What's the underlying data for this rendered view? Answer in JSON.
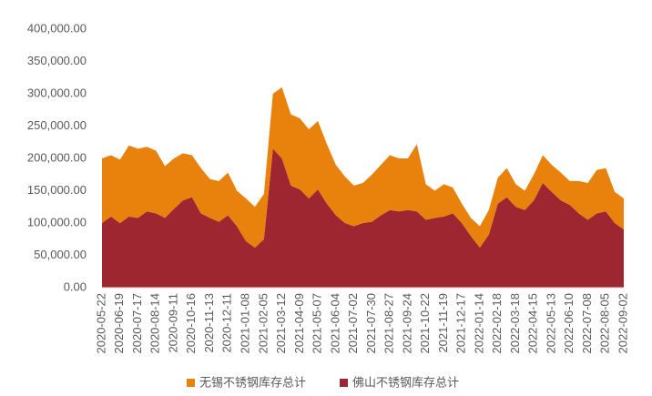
{
  "chart_data": {
    "type": "stacked-area",
    "categories": [
      "2020-05-22",
      null,
      "2020-06-19",
      null,
      "2020-07-17",
      null,
      "2020-08-14",
      null,
      "2020-09-11",
      null,
      "2020-10-16",
      null,
      "2020-11-13",
      null,
      "2020-12-11",
      null,
      "2021-01-08",
      null,
      "2021-02-05",
      null,
      "2021-03-12",
      null,
      "2021-04-09",
      null,
      "2021-05-07",
      null,
      "2021-06-04",
      null,
      "2021-07-02",
      null,
      "2021-07-30",
      null,
      "2021-08-27",
      null,
      "2021-09-24",
      null,
      "2021-10-22",
      null,
      "2021-11-19",
      null,
      "2021-12-17",
      null,
      "2022-01-14",
      null,
      "2022-02-18",
      null,
      "2022-03-18",
      null,
      "2022-04-15",
      null,
      "2022-05-13",
      null,
      "2022-06-10",
      null,
      "2022-07-08",
      null,
      "2022-08-05",
      null,
      "2022-09-02"
    ],
    "series": [
      {
        "name": "无锡不锈钢库存总计",
        "color": "#e8820c",
        "values": [
          100000,
          95000,
          98000,
          110000,
          107000,
          100000,
          97000,
          80000,
          78000,
          73000,
          65000,
          70000,
          60000,
          63000,
          66000,
          55000,
          66000,
          63000,
          70000,
          85000,
          110000,
          110000,
          110000,
          107000,
          106000,
          92000,
          78000,
          72000,
          63000,
          62000,
          73000,
          78000,
          85000,
          82000,
          80000,
          104000,
          55000,
          42000,
          50000,
          40000,
          30000,
          28000,
          33000,
          38000,
          40000,
          45000,
          35000,
          30000,
          40000,
          43000,
          42000,
          43000,
          37000,
          50000,
          57000,
          67000,
          67000,
          48000,
          48000
        ]
      },
      {
        "name": "佛山不锈钢库存总计",
        "color": "#9e2631",
        "values": [
          100000,
          110000,
          100000,
          110000,
          108000,
          118000,
          115000,
          108000,
          122000,
          135000,
          140000,
          115000,
          108000,
          102000,
          112000,
          95000,
          72000,
          62000,
          75000,
          215000,
          200000,
          158000,
          152000,
          138000,
          152000,
          130000,
          112000,
          100000,
          95000,
          100000,
          102000,
          112000,
          120000,
          118000,
          120000,
          118000,
          105000,
          108000,
          110000,
          115000,
          100000,
          80000,
          62000,
          82000,
          130000,
          140000,
          125000,
          120000,
          135000,
          162000,
          148000,
          135000,
          128000,
          115000,
          105000,
          115000,
          118000,
          100000,
          90000
        ]
      }
    ],
    "ylim": [
      0,
      400000
    ],
    "yticks": [
      {
        "value": 0,
        "label": "0.00"
      },
      {
        "value": 50000,
        "label": "50,000.00"
      },
      {
        "value": 100000,
        "label": "100,000.00"
      },
      {
        "value": 150000,
        "label": "150,000.00"
      },
      {
        "value": 200000,
        "label": "200,000.00"
      },
      {
        "value": 250000,
        "label": "250,000.00"
      },
      {
        "value": 300000,
        "label": "300,000.00"
      },
      {
        "value": 350000,
        "label": "350,000.00"
      },
      {
        "value": 400000,
        "label": "400,000.00"
      }
    ],
    "legend": "bottom"
  }
}
